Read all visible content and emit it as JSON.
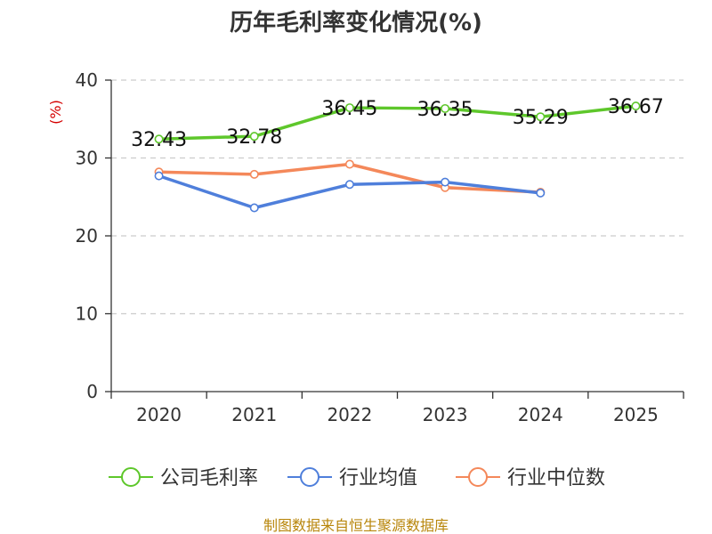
{
  "chart_data": {
    "type": "line",
    "title": "历年毛利率变化情况(%)",
    "ylabel": "(%)",
    "ylim": [
      0,
      40
    ],
    "yticks": [
      0,
      10,
      20,
      30,
      40
    ],
    "categories": [
      "2020",
      "2021",
      "2022",
      "2023",
      "2024",
      "2025"
    ],
    "grid": true,
    "legend_position": "bottom",
    "series": [
      {
        "name": "公司毛利率",
        "color": "#5ec72b",
        "values": [
          32.43,
          32.78,
          36.45,
          36.35,
          35.29,
          36.67
        ],
        "labels": [
          "32.43",
          "32.78",
          "36.45",
          "36.35",
          "35.29",
          "36.67"
        ]
      },
      {
        "name": "行业均值",
        "color": "#4f7fdb",
        "values": [
          27.7,
          23.6,
          26.6,
          26.9,
          25.5,
          null
        ]
      },
      {
        "name": "行业中位数",
        "color": "#f4885a",
        "values": [
          28.2,
          27.9,
          29.2,
          26.2,
          25.6,
          null
        ]
      }
    ]
  },
  "source": "制图数据来自恒生聚源数据库"
}
